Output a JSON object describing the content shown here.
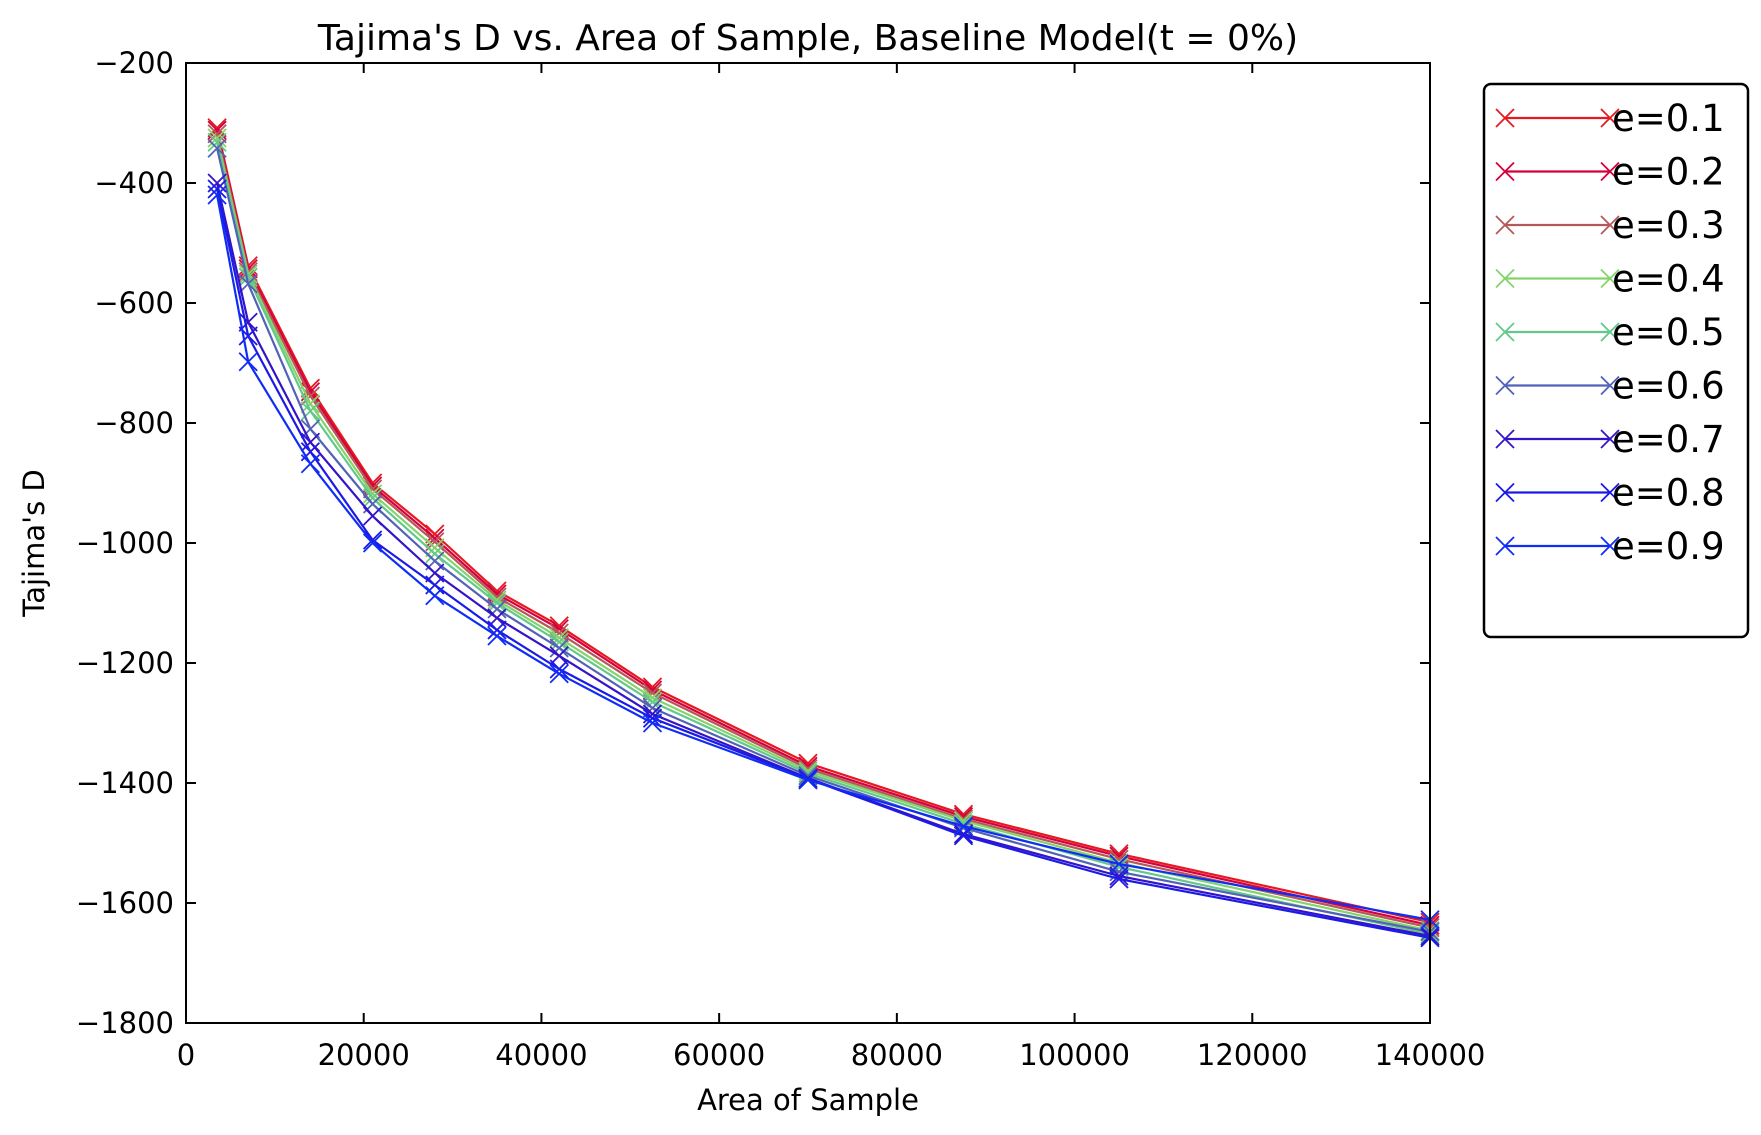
{
  "chart_data": {
    "type": "line",
    "title": "Tajima's D vs. Area of Sample, Baseline Model(t = 0%)",
    "xlabel": "Area of Sample",
    "ylabel": "Tajima's D",
    "xlim": [
      0,
      140000
    ],
    "ylim": [
      -1800,
      -200
    ],
    "xticks": [
      0,
      20000,
      40000,
      60000,
      80000,
      100000,
      120000,
      140000
    ],
    "yticks": [
      -1800,
      -1600,
      -1400,
      -1200,
      -1000,
      -800,
      -600,
      -400,
      -200
    ],
    "x": [
      3500,
      7000,
      14000,
      21000,
      28000,
      35000,
      42000,
      52500,
      70000,
      87500,
      105000,
      140000
    ],
    "marker": "x",
    "grid": false,
    "legend_position": "outside-top-right",
    "series": [
      {
        "name": "e=0.1",
        "color": "#e6191f",
        "values": [
          -308,
          -538,
          -742,
          -900,
          -985,
          -1080,
          -1138,
          -1240,
          -1367,
          -1452,
          -1518,
          -1632
        ]
      },
      {
        "name": "e=0.2",
        "color": "#d6003f",
        "values": [
          -312,
          -543,
          -748,
          -905,
          -992,
          -1085,
          -1143,
          -1245,
          -1372,
          -1456,
          -1522,
          -1637
        ]
      },
      {
        "name": "e=0.3",
        "color": "#b5585a",
        "values": [
          -318,
          -548,
          -755,
          -910,
          -998,
          -1090,
          -1150,
          -1250,
          -1376,
          -1460,
          -1527,
          -1641
        ]
      },
      {
        "name": "e=0.4",
        "color": "#86d36a",
        "values": [
          -325,
          -552,
          -768,
          -918,
          -1008,
          -1095,
          -1158,
          -1258,
          -1380,
          -1463,
          -1533,
          -1646
        ]
      },
      {
        "name": "e=0.5",
        "color": "#62c98a",
        "values": [
          -332,
          -557,
          -780,
          -925,
          -1018,
          -1100,
          -1165,
          -1265,
          -1384,
          -1468,
          -1540,
          -1652
        ]
      },
      {
        "name": "e=0.6",
        "color": "#5262b6",
        "values": [
          -342,
          -568,
          -810,
          -935,
          -1030,
          -1110,
          -1175,
          -1275,
          -1388,
          -1475,
          -1548,
          -1648
        ]
      },
      {
        "name": "e=0.7",
        "color": "#3513c8",
        "values": [
          -400,
          -632,
          -832,
          -955,
          -1050,
          -1125,
          -1188,
          -1285,
          -1392,
          -1485,
          -1555,
          -1655
        ]
      },
      {
        "name": "e=0.8",
        "color": "#1c1ae6",
        "values": [
          -410,
          -655,
          -848,
          -995,
          -1070,
          -1145,
          -1210,
          -1292,
          -1393,
          -1488,
          -1560,
          -1658
        ]
      },
      {
        "name": "e=0.9",
        "color": "#0f2df5",
        "values": [
          -420,
          -698,
          -868,
          -1000,
          -1088,
          -1155,
          -1218,
          -1300,
          -1395,
          -1472,
          -1535,
          -1628
        ]
      }
    ]
  }
}
